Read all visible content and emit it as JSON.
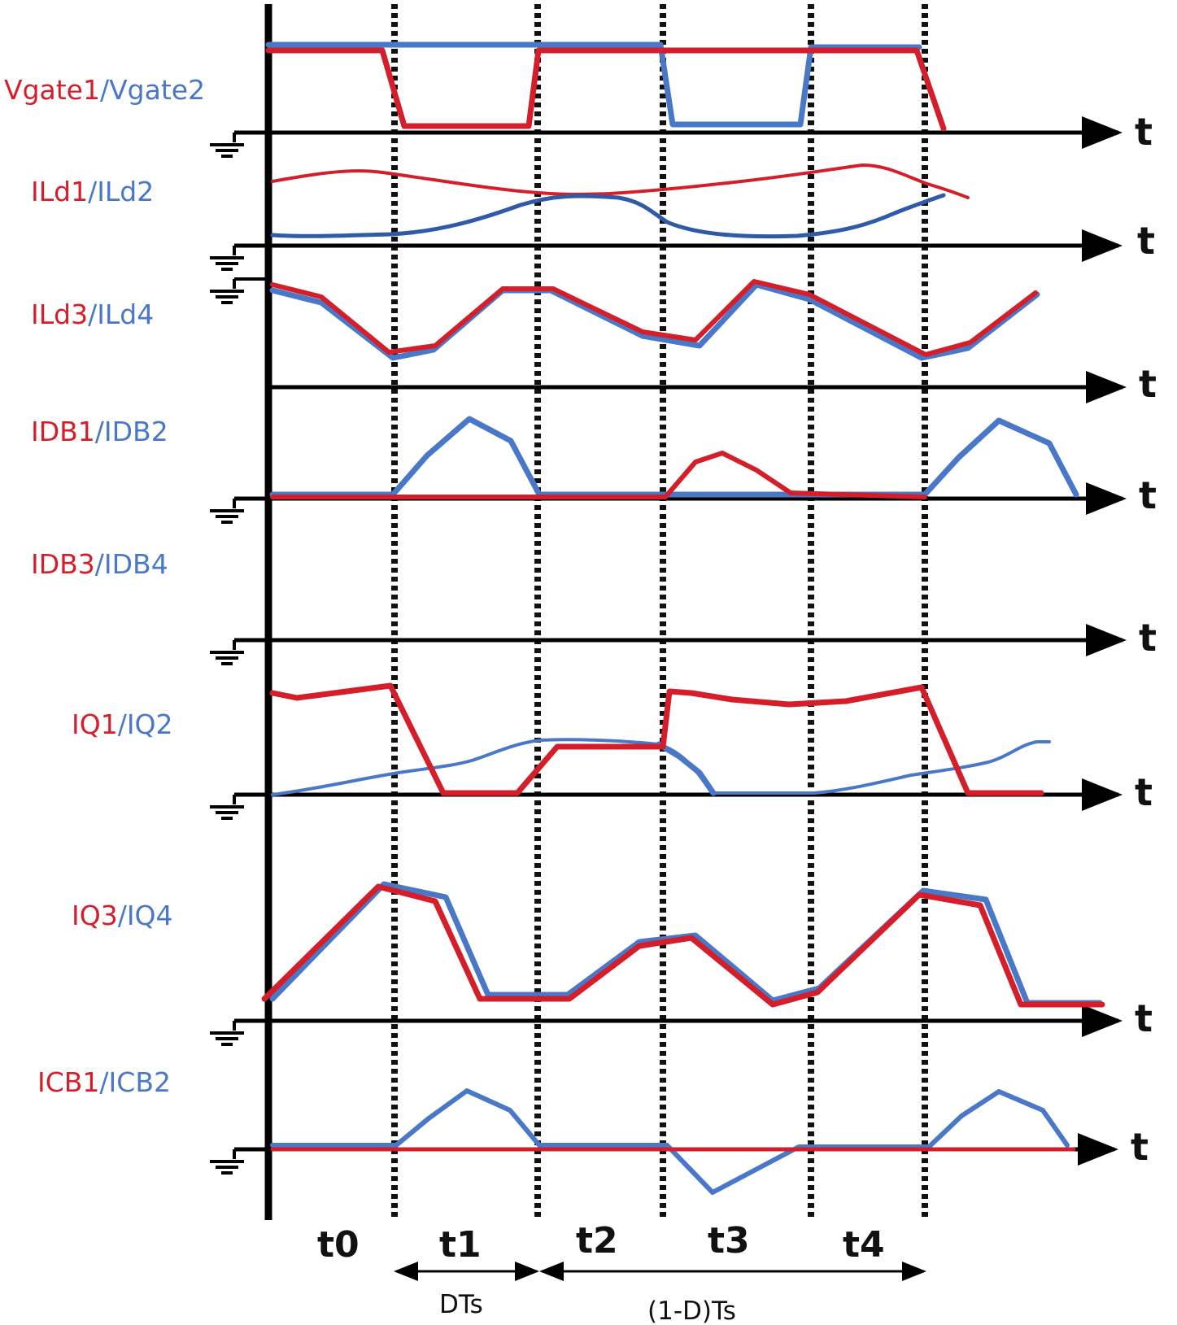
{
  "colors": {
    "red": "#d41f2b",
    "blue": "#4a78c8",
    "axis": "#000000"
  },
  "labels": {
    "gate": {
      "red": "Vgate1",
      "sep": "/",
      "blue": "Vgate2"
    },
    "ild12": {
      "red": "ILd1",
      "sep": "/",
      "blue": "ILd2"
    },
    "ild34": {
      "red": "ILd3",
      "sep": "/",
      "blue": "ILd4"
    },
    "idb12": {
      "red": "IDB1",
      "sep": "/",
      "blue": "IDB2"
    },
    "idb34": {
      "red": "IDB3",
      "sep": "/",
      "blue": "IDB4"
    },
    "iq12": {
      "red": "IQ1",
      "sep": "/",
      "blue": "IQ2"
    },
    "iq34": {
      "red": "IQ3",
      "sep": "/",
      "blue": "IQ4"
    },
    "icb12": {
      "red": "ICB1",
      "sep": "/",
      "blue": "ICB2"
    }
  },
  "time_axis_label": "t",
  "intervals": [
    "t0",
    "t1",
    "t2",
    "t3",
    "t4"
  ],
  "durations": {
    "duty": "DTs",
    "off": "(1-D)Ts"
  }
}
